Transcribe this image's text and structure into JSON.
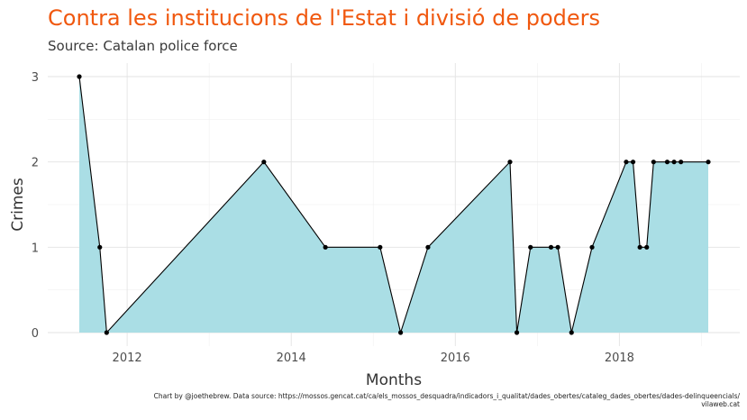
{
  "chart_data": {
    "type": "area",
    "title": "Contra les institucions de l'Estat i divisió de poders",
    "subtitle": "Source: Catalan police force",
    "xlabel": "Months",
    "ylabel": "Crimes",
    "caption_line1": "Chart by @joethebrew. Data source: https://mossos.gencat.cat/ca/els_mossos_desquadra/indicadors_i_qualitat/dades_obertes/cataleg_dades_obertes/dades-delinqueencials/",
    "caption_line2": "vilaweb.cat",
    "xlim": [
      "2011-03-01",
      "2019-05-01"
    ],
    "ylim": [
      0,
      3
    ],
    "x_ticks": [
      "2012",
      "2014",
      "2016",
      "2018"
    ],
    "y_ticks": [
      "0",
      "1",
      "2",
      "3"
    ],
    "grid": true,
    "fill_color": "#aadee5",
    "line_color": "#000000",
    "points": [
      {
        "x": "2011-06",
        "y": 3
      },
      {
        "x": "2011-09",
        "y": 1
      },
      {
        "x": "2011-10",
        "y": 0
      },
      {
        "x": "2013-09",
        "y": 2
      },
      {
        "x": "2014-06",
        "y": 1
      },
      {
        "x": "2015-02",
        "y": 1
      },
      {
        "x": "2015-05",
        "y": 0
      },
      {
        "x": "2015-09",
        "y": 1
      },
      {
        "x": "2016-09",
        "y": 2
      },
      {
        "x": "2016-10",
        "y": 0
      },
      {
        "x": "2016-12",
        "y": 1
      },
      {
        "x": "2017-03",
        "y": 1
      },
      {
        "x": "2017-04",
        "y": 1
      },
      {
        "x": "2017-06",
        "y": 0
      },
      {
        "x": "2017-09",
        "y": 1
      },
      {
        "x": "2018-02",
        "y": 2
      },
      {
        "x": "2018-03",
        "y": 2
      },
      {
        "x": "2018-04",
        "y": 1
      },
      {
        "x": "2018-05",
        "y": 1
      },
      {
        "x": "2018-06",
        "y": 2
      },
      {
        "x": "2018-08",
        "y": 2
      },
      {
        "x": "2018-09",
        "y": 2
      },
      {
        "x": "2018-10",
        "y": 2
      },
      {
        "x": "2019-02",
        "y": 2
      }
    ]
  }
}
